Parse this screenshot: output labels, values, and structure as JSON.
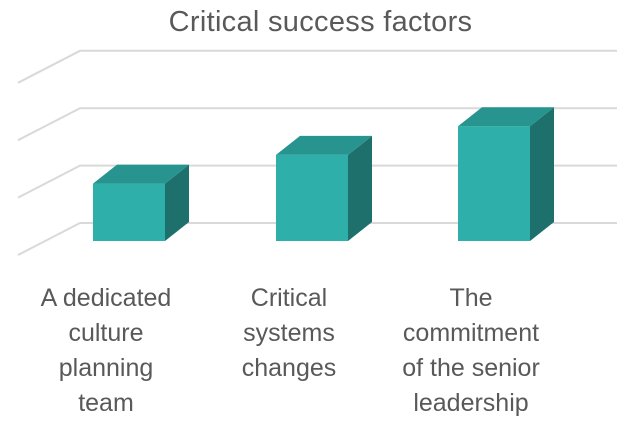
{
  "chart_data": {
    "type": "bar",
    "style": "3d-column",
    "title": "Critical success factors",
    "categories": [
      "A dedicated\nculture\nplanning\nteam",
      "Critical\nsystems\nchanges",
      "The\ncommitment\nof the senior\nleadership"
    ],
    "values": [
      2,
      3,
      4
    ],
    "ylim": [
      0,
      6
    ],
    "grid": true,
    "legend": "none",
    "xlabel": "",
    "ylabel": "",
    "colors": {
      "front": "#2eafa9",
      "top": "#27948f",
      "side": "#1d706c",
      "grid": "#d9d9d9",
      "text": "#595959"
    }
  }
}
